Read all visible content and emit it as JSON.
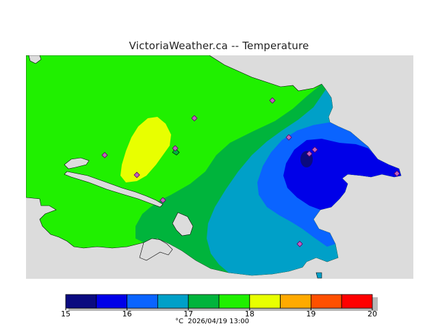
{
  "title": "VictoriaWeather.ca -- Temperature",
  "caption": "°C  2026/04/19 13:00",
  "colors": {
    "land_water": "#dcdcdc",
    "band_15_155": "#0a0a80",
    "band_155_16": "#0000e8",
    "band_16_165": "#0a64ff",
    "band_165_17": "#00a0c8",
    "band_17_175": "#00b43c",
    "band_175_18": "#20f000",
    "band_18_185": "#e8ff00",
    "band_185_19": "#ffaa00",
    "band_19_195": "#ff5000",
    "band_195_20": "#ff0000"
  },
  "legend": {
    "min": 15,
    "max": 20,
    "tick_labels": [
      "15",
      "16",
      "17",
      "18",
      "19",
      "20"
    ],
    "bands": [
      "#0a0a80",
      "#0000e8",
      "#0a64ff",
      "#00a0c8",
      "#00b43c",
      "#20f000",
      "#e8ff00",
      "#ffaa00",
      "#ff5000",
      "#ff0000"
    ]
  }
}
